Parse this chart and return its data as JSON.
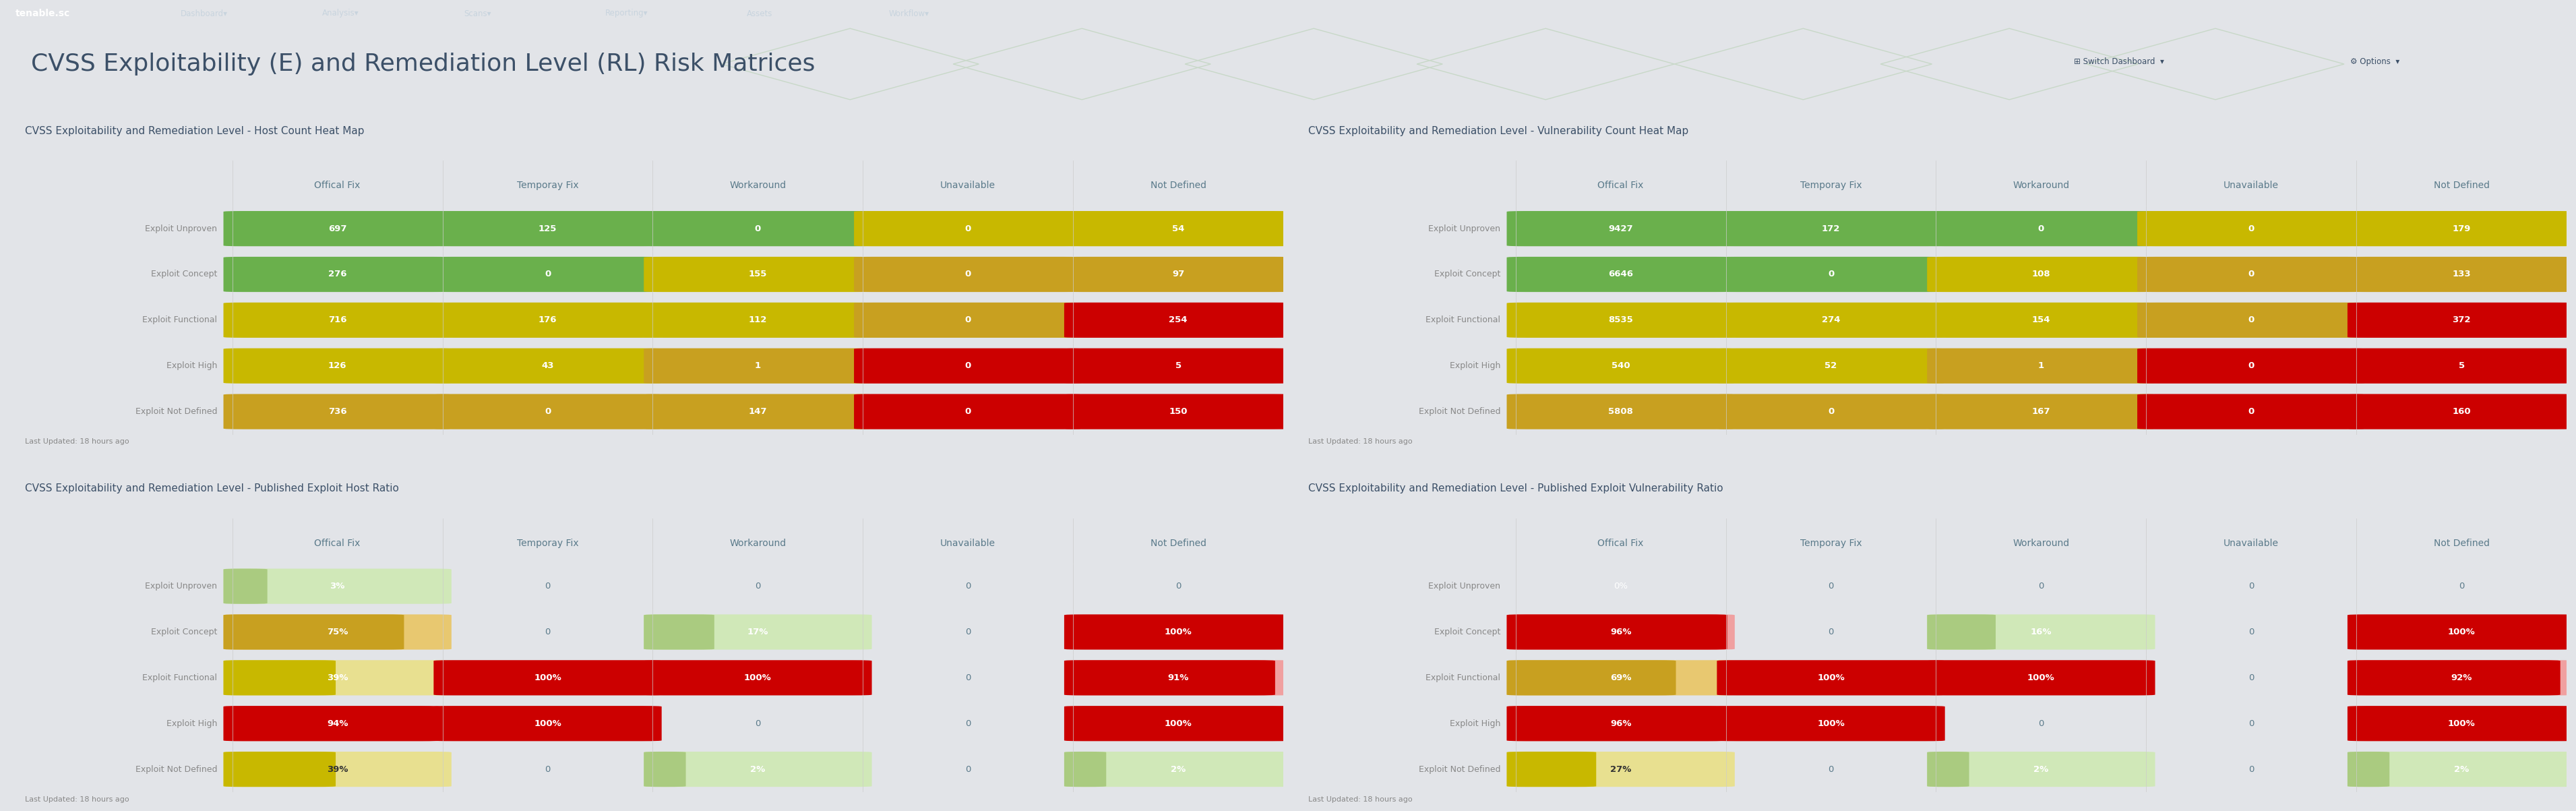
{
  "page_title": "CVSS Exploitability (E) and Remediation Level (RL) Risk Matrices",
  "nav_bg": "#3c5068",
  "header_bg": "#f5f6f8",
  "panel_bg": "#ffffff",
  "panel_title_bg": "#e8eaed",
  "panel_border": "#cccccc",
  "body_bg": "#e2e4e8",
  "title_color": "#3c5068",
  "header_color": "#5a7a8a",
  "row_label_color": "#888888",
  "footer_text": "Last Updated: 18 hours ago",
  "col_headers": [
    "Offical Fix",
    "Temporay Fix",
    "Workaround",
    "Unavailable",
    "Not Defined"
  ],
  "row_headers": [
    "Exploit Unproven",
    "Exploit Concept",
    "Exploit Functional",
    "Exploit High",
    "Exploit Not Defined"
  ],
  "panels": [
    {
      "title": "CVSS Exploitability and Remediation Level - Host Count Heat Map",
      "data": [
        [
          "697",
          "125",
          "0",
          "0",
          "54"
        ],
        [
          "276",
          "0",
          "155",
          "0",
          "97"
        ],
        [
          "716",
          "176",
          "112",
          "0",
          "254"
        ],
        [
          "126",
          "43",
          "1",
          "0",
          "5"
        ],
        [
          "736",
          "0",
          "147",
          "0",
          "150"
        ]
      ],
      "colors": [
        [
          "#6ab04c",
          "#6ab04c",
          "#6ab04c",
          "#c8b800",
          "#c8b800"
        ],
        [
          "#6ab04c",
          "#6ab04c",
          "#c8b800",
          "#c8a020",
          "#c8a020"
        ],
        [
          "#c8b800",
          "#c8b800",
          "#c8b800",
          "#c8a020",
          "#cc0000"
        ],
        [
          "#c8b800",
          "#c8b800",
          "#c8a020",
          "#cc0000",
          "#cc0000"
        ],
        [
          "#c8a020",
          "#c8a020",
          "#c8a020",
          "#cc0000",
          "#cc0000"
        ]
      ]
    },
    {
      "title": "CVSS Exploitability and Remediation Level - Vulnerability Count Heat Map",
      "data": [
        [
          "9427",
          "172",
          "0",
          "0",
          "179"
        ],
        [
          "6646",
          "0",
          "108",
          "0",
          "133"
        ],
        [
          "8535",
          "274",
          "154",
          "0",
          "372"
        ],
        [
          "540",
          "52",
          "1",
          "0",
          "5"
        ],
        [
          "5808",
          "0",
          "167",
          "0",
          "160"
        ]
      ],
      "colors": [
        [
          "#6ab04c",
          "#6ab04c",
          "#6ab04c",
          "#c8b800",
          "#c8b800"
        ],
        [
          "#6ab04c",
          "#6ab04c",
          "#c8b800",
          "#c8a020",
          "#c8a020"
        ],
        [
          "#c8b800",
          "#c8b800",
          "#c8b800",
          "#c8a020",
          "#cc0000"
        ],
        [
          "#c8b800",
          "#c8b800",
          "#c8a020",
          "#cc0000",
          "#cc0000"
        ],
        [
          "#c8a020",
          "#c8a020",
          "#c8a020",
          "#cc0000",
          "#cc0000"
        ]
      ]
    },
    {
      "title": "CVSS Exploitability and Remediation Level - Published Exploit Host Ratio",
      "data": [
        [
          "3%",
          "0",
          "0",
          "0",
          "0"
        ],
        [
          "75%",
          "0",
          "17%",
          "0",
          "100%"
        ],
        [
          "39%",
          "100%",
          "100%",
          "0",
          "91%"
        ],
        [
          "94%",
          "100%",
          "0",
          "0",
          "100%"
        ],
        [
          "39%",
          "0",
          "2%",
          "0",
          "2%"
        ]
      ],
      "colors": [
        [
          "#aacb80",
          "none",
          "none",
          "none",
          "none"
        ],
        [
          "#c8a020",
          "none",
          "#aacb80",
          "none",
          "#cc0000"
        ],
        [
          "#c8b800",
          "#cc0000",
          "#cc0000",
          "none",
          "#cc0000"
        ],
        [
          "#cc0000",
          "#cc0000",
          "none",
          "none",
          "#cc0000"
        ],
        [
          "#c8b800",
          "none",
          "#aacb80",
          "none",
          "#aacb80"
        ]
      ],
      "fill_fractions": [
        [
          0.03,
          0,
          0,
          0,
          0
        ],
        [
          0.75,
          0,
          0.17,
          0,
          1.0
        ],
        [
          0.39,
          1.0,
          1.0,
          0,
          0.91
        ],
        [
          0.94,
          1.0,
          0,
          0,
          1.0
        ],
        [
          0.39,
          0,
          0.02,
          0,
          0.02
        ]
      ],
      "text_colors": [
        [
          "#ffffff",
          "#5a7a8a",
          "#5a7a8a",
          "#5a7a8a",
          "#5a7a8a"
        ],
        [
          "#ffffff",
          "#5a7a8a",
          "#ffffff",
          "#5a7a8a",
          "#ffffff"
        ],
        [
          "#ffffff",
          "#ffffff",
          "#ffffff",
          "#5a7a8a",
          "#ffffff"
        ],
        [
          "#ffffff",
          "#ffffff",
          "#5a7a8a",
          "#5a7a8a",
          "#ffffff"
        ],
        [
          "#333333",
          "#5a7a8a",
          "#ffffff",
          "#5a7a8a",
          "#ffffff"
        ]
      ]
    },
    {
      "title": "CVSS Exploitability and Remediation Level - Published Exploit Vulnerability Ratio",
      "data": [
        [
          "0%",
          "0",
          "0",
          "0",
          "0"
        ],
        [
          "96%",
          "0",
          "16%",
          "0",
          "100%"
        ],
        [
          "69%",
          "100%",
          "100%",
          "0",
          "92%"
        ],
        [
          "96%",
          "100%",
          "0",
          "0",
          "100%"
        ],
        [
          "27%",
          "0",
          "2%",
          "0",
          "2%"
        ]
      ],
      "colors": [
        [
          "#aacb80",
          "none",
          "none",
          "none",
          "none"
        ],
        [
          "#cc0000",
          "none",
          "#aacb80",
          "none",
          "#cc0000"
        ],
        [
          "#c8a020",
          "#cc0000",
          "#cc0000",
          "none",
          "#cc0000"
        ],
        [
          "#cc0000",
          "#cc0000",
          "none",
          "none",
          "#cc0000"
        ],
        [
          "#c8b800",
          "none",
          "#aacb80",
          "none",
          "#aacb80"
        ]
      ],
      "fill_fractions": [
        [
          0.0,
          0,
          0,
          0,
          0
        ],
        [
          0.96,
          0,
          0.16,
          0,
          1.0
        ],
        [
          0.69,
          1.0,
          1.0,
          0,
          0.92
        ],
        [
          0.96,
          1.0,
          0,
          0,
          1.0
        ],
        [
          0.27,
          0,
          0.02,
          0,
          0.02
        ]
      ],
      "text_colors": [
        [
          "#ffffff",
          "#5a7a8a",
          "#5a7a8a",
          "#5a7a8a",
          "#5a7a8a"
        ],
        [
          "#ffffff",
          "#5a7a8a",
          "#ffffff",
          "#5a7a8a",
          "#ffffff"
        ],
        [
          "#ffffff",
          "#ffffff",
          "#ffffff",
          "#5a7a8a",
          "#ffffff"
        ],
        [
          "#ffffff",
          "#ffffff",
          "#5a7a8a",
          "#5a7a8a",
          "#ffffff"
        ],
        [
          "#333333",
          "#5a7a8a",
          "#ffffff",
          "#5a7a8a",
          "#ffffff"
        ]
      ]
    }
  ],
  "nav_items": [
    "Dashboard▾",
    "Analysis▾",
    "Scans▾",
    "Reporting▾",
    "Assets",
    "Workflow▾"
  ],
  "col_headers_fontsize": 10,
  "row_headers_fontsize": 9,
  "cell_value_fontsize": 9.5,
  "panel_title_fontsize": 11,
  "main_title_fontsize": 26
}
